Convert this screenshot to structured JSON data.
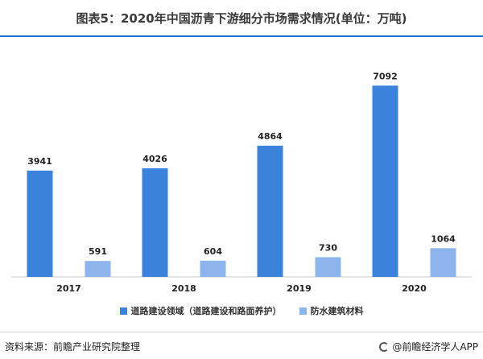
{
  "header": {
    "title": "图表5：2020年中国沥青下游细分市场需求情况(单位：万吨)"
  },
  "footer": {
    "source": "资料来源：前瞻产业研究院整理",
    "brand": "@前瞻经济学人APP"
  },
  "colors": {
    "accent": "#1e6bd6",
    "series1": "#3b82dc",
    "series2": "#8db4ec"
  },
  "chart_data": {
    "type": "bar",
    "categories": [
      "2017",
      "2018",
      "2019",
      "2020"
    ],
    "series": [
      {
        "name": "道路建设领域（道路建设和路面养护）",
        "values": [
          3941,
          4026,
          4864,
          7092
        ]
      },
      {
        "name": "防水建筑材料",
        "values": [
          591,
          604,
          730,
          1064
        ]
      }
    ],
    "ylim": [
      0,
      7700
    ],
    "grid": false,
    "legend_position": "bottom"
  }
}
